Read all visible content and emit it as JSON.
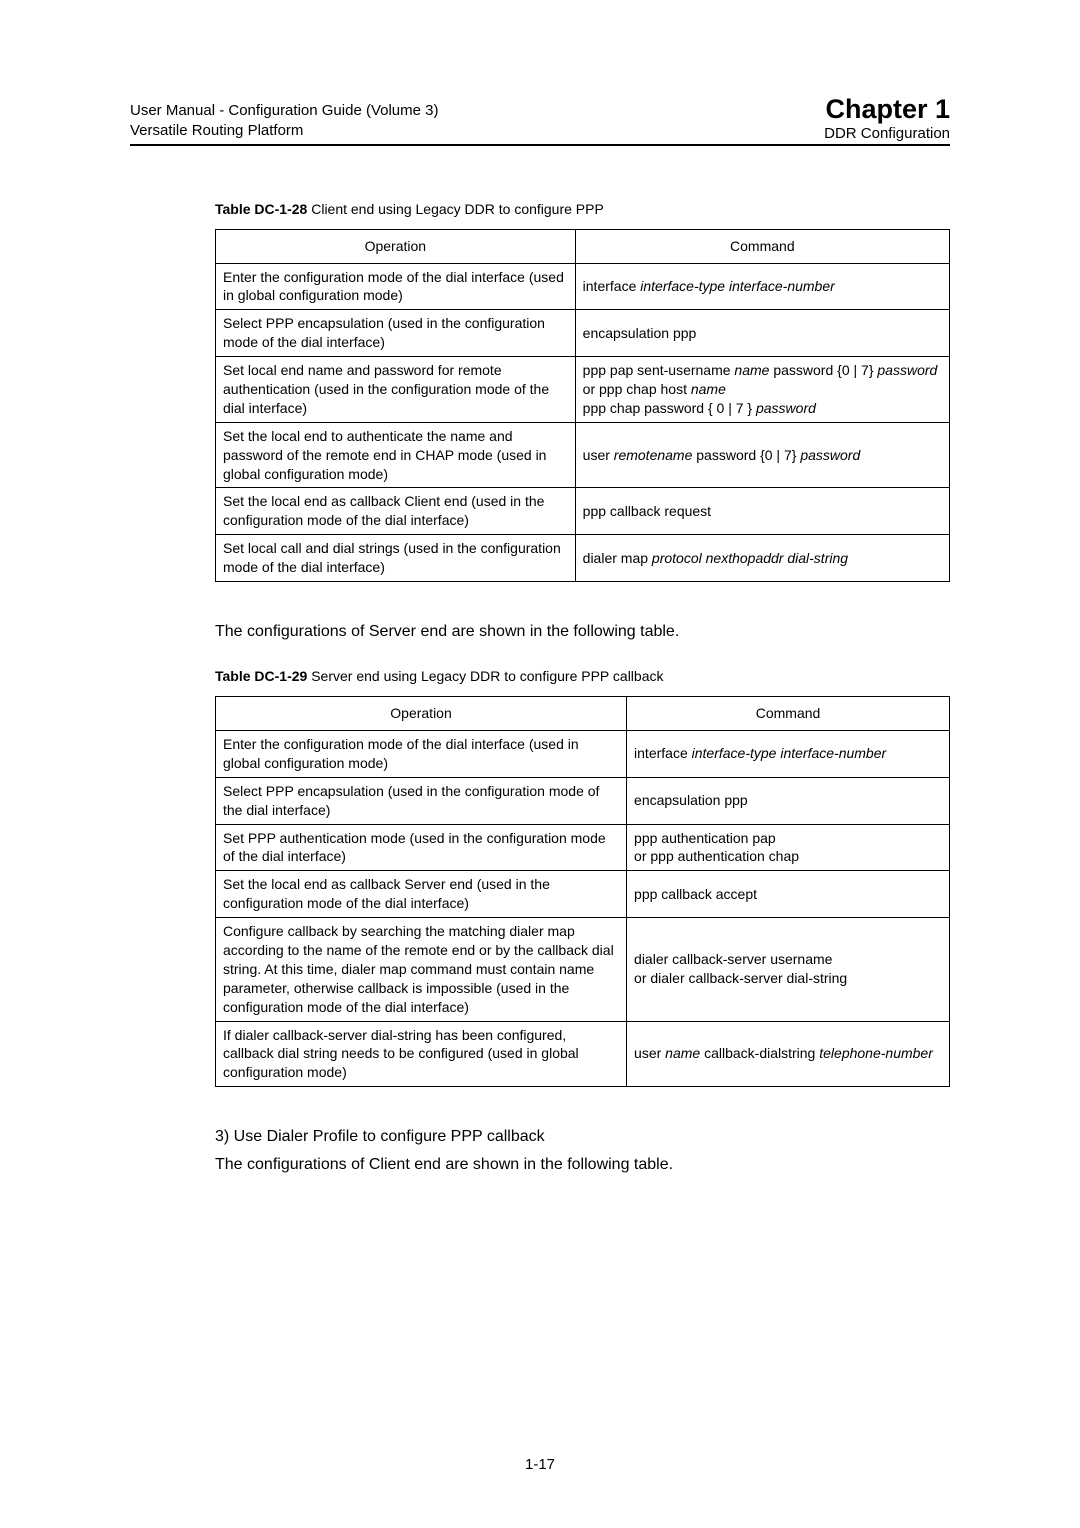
{
  "header": {
    "manual_line1": "User Manual - Configuration Guide (Volume 3)",
    "manual_line2": "Versatile Routing Platform",
    "chapter": "Chapter 1",
    "chapter_sub": "DDR Configuration"
  },
  "table1": {
    "caption_bold": "Table DC-1-28",
    "caption_rest": "  Client end using Legacy DDR to configure PPP",
    "headers": {
      "op": "Operation",
      "cmd": "Command"
    },
    "rows": [
      {
        "op": "Enter the configuration mode of the dial interface (used in global configuration mode)",
        "cmd_parts": [
          {
            "t": "interface ",
            "i": false
          },
          {
            "t": "interface-type  interface-number",
            "i": true
          }
        ]
      },
      {
        "op": "Select PPP encapsulation (used in the configuration mode of the dial interface)",
        "cmd_parts": [
          {
            "t": "encapsulation ppp",
            "i": false
          }
        ]
      },
      {
        "op": "Set local end name and password for remote authentication (used in the configuration mode of the dial interface)",
        "cmd_lines": [
          [
            {
              "t": "ppp pap sent-username ",
              "i": false
            },
            {
              "t": "name",
              "i": true
            },
            {
              "t": " password {0 | 7} ",
              "i": false
            },
            {
              "t": "password",
              "i": true
            }
          ],
          [
            {
              "t": "or ppp chap host ",
              "i": false
            },
            {
              "t": "name",
              "i": true
            }
          ],
          [
            {
              "t": "ppp chap password  { 0 | 7 }  ",
              "i": false
            },
            {
              "t": "password",
              "i": true
            }
          ]
        ]
      },
      {
        "op": "Set the local end to authenticate the name and password of the remote end in CHAP mode (used in global configuration mode)",
        "cmd_parts": [
          {
            "t": "user ",
            "i": false
          },
          {
            "t": "remotename",
            "i": true
          },
          {
            "t": " password  {0 | 7}  ",
            "i": false
          },
          {
            "t": "password",
            "i": true
          }
        ]
      },
      {
        "op": "Set the local end as callback Client end (used in the configuration mode of the dial interface)",
        "cmd_parts": [
          {
            "t": "ppp callback request",
            "i": false
          }
        ]
      },
      {
        "op": "Set local call and dial strings (used in the configuration mode of the dial interface)",
        "cmd_parts": [
          {
            "t": "dialer map ",
            "i": false
          },
          {
            "t": "protocol nexthopaddr dial-string",
            "i": true
          }
        ]
      }
    ]
  },
  "mid_text": "The configurations of Server end are shown in the following table.",
  "table2": {
    "caption_bold": "Table DC-1-29",
    "caption_rest": "  Server end using Legacy DDR to configure PPP callback",
    "headers": {
      "op": "Operation",
      "cmd": "Command"
    },
    "rows": [
      {
        "op": "Enter the configuration mode of the dial interface (used in global configuration mode)",
        "cmd_parts": [
          {
            "t": "interface ",
            "i": false
          },
          {
            "t": "interface-type interface-number",
            "i": true
          }
        ]
      },
      {
        "op": "Select PPP encapsulation (used in the configuration mode of the dial interface)",
        "cmd_parts": [
          {
            "t": "encapsulation ppp",
            "i": false
          }
        ]
      },
      {
        "op": "Set PPP authentication mode (used in the configuration mode of the dial interface)",
        "cmd_lines": [
          [
            {
              "t": "ppp authentication pap",
              "i": false
            }
          ],
          [
            {
              "t": "or ppp authentication chap",
              "i": false
            }
          ]
        ]
      },
      {
        "op": "Set the local end as callback Server end (used in the configuration mode of the dial interface)",
        "cmd_parts": [
          {
            "t": "ppp callback accept",
            "i": false
          }
        ]
      },
      {
        "op": "Configure callback by searching the matching dialer map according to the name of the remote end or by the callback dial string. At this time, dialer map command must contain name parameter, otherwise callback is impossible (used in the configuration mode of the dial interface)",
        "cmd_lines": [
          [
            {
              "t": "dialer callback-server username",
              "i": false
            }
          ],
          [
            {
              "t": "or dialer callback-server dial-string",
              "i": false
            }
          ]
        ]
      },
      {
        "op": "If dialer callback-server dial-string has been configured, callback dial string needs to be configured (used in global configuration mode)",
        "cmd_parts": [
          {
            "t": "user ",
            "i": false
          },
          {
            "t": "name",
            "i": true
          },
          {
            "t": " callback-dialstring ",
            "i": false
          },
          {
            "t": "telephone-number",
            "i": true
          }
        ]
      }
    ]
  },
  "footer_text1": "3)    Use Dialer Profile to configure PPP callback",
  "footer_text2": "The configurations of Client end are shown in the following table.",
  "page_num": "1-17"
}
